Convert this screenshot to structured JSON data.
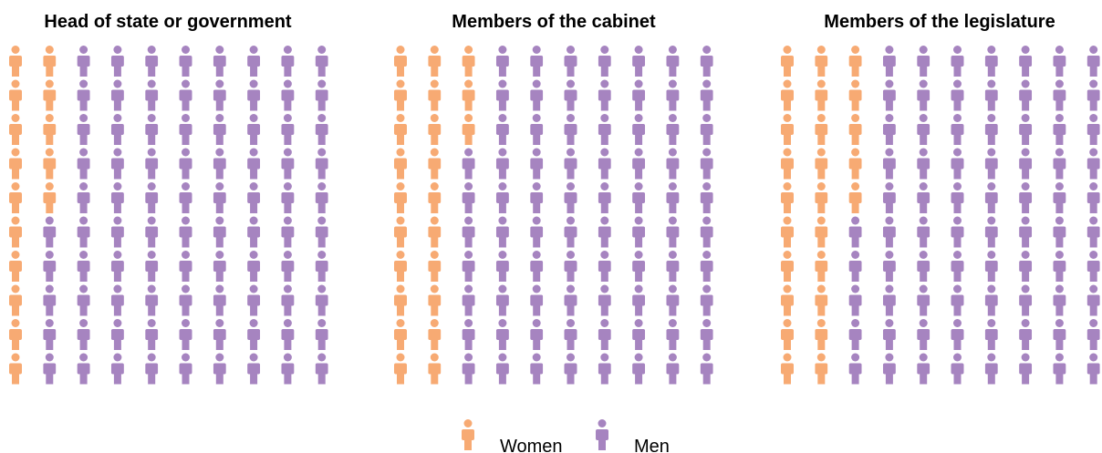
{
  "chart_data": {
    "type": "pictogram",
    "units_per_chart": 100,
    "series": [
      {
        "name": "Women",
        "color": "#f7aa73"
      },
      {
        "name": "Men",
        "color": "#a684c0"
      }
    ],
    "panels": [
      {
        "title": "Head of state or government",
        "women": 15,
        "men": 85
      },
      {
        "title": "Members of the cabinet",
        "women": 23,
        "men": 77
      },
      {
        "title": "Members of the legislature",
        "women": 25,
        "men": 75
      }
    ],
    "legend": {
      "position": "bottom-center"
    }
  }
}
